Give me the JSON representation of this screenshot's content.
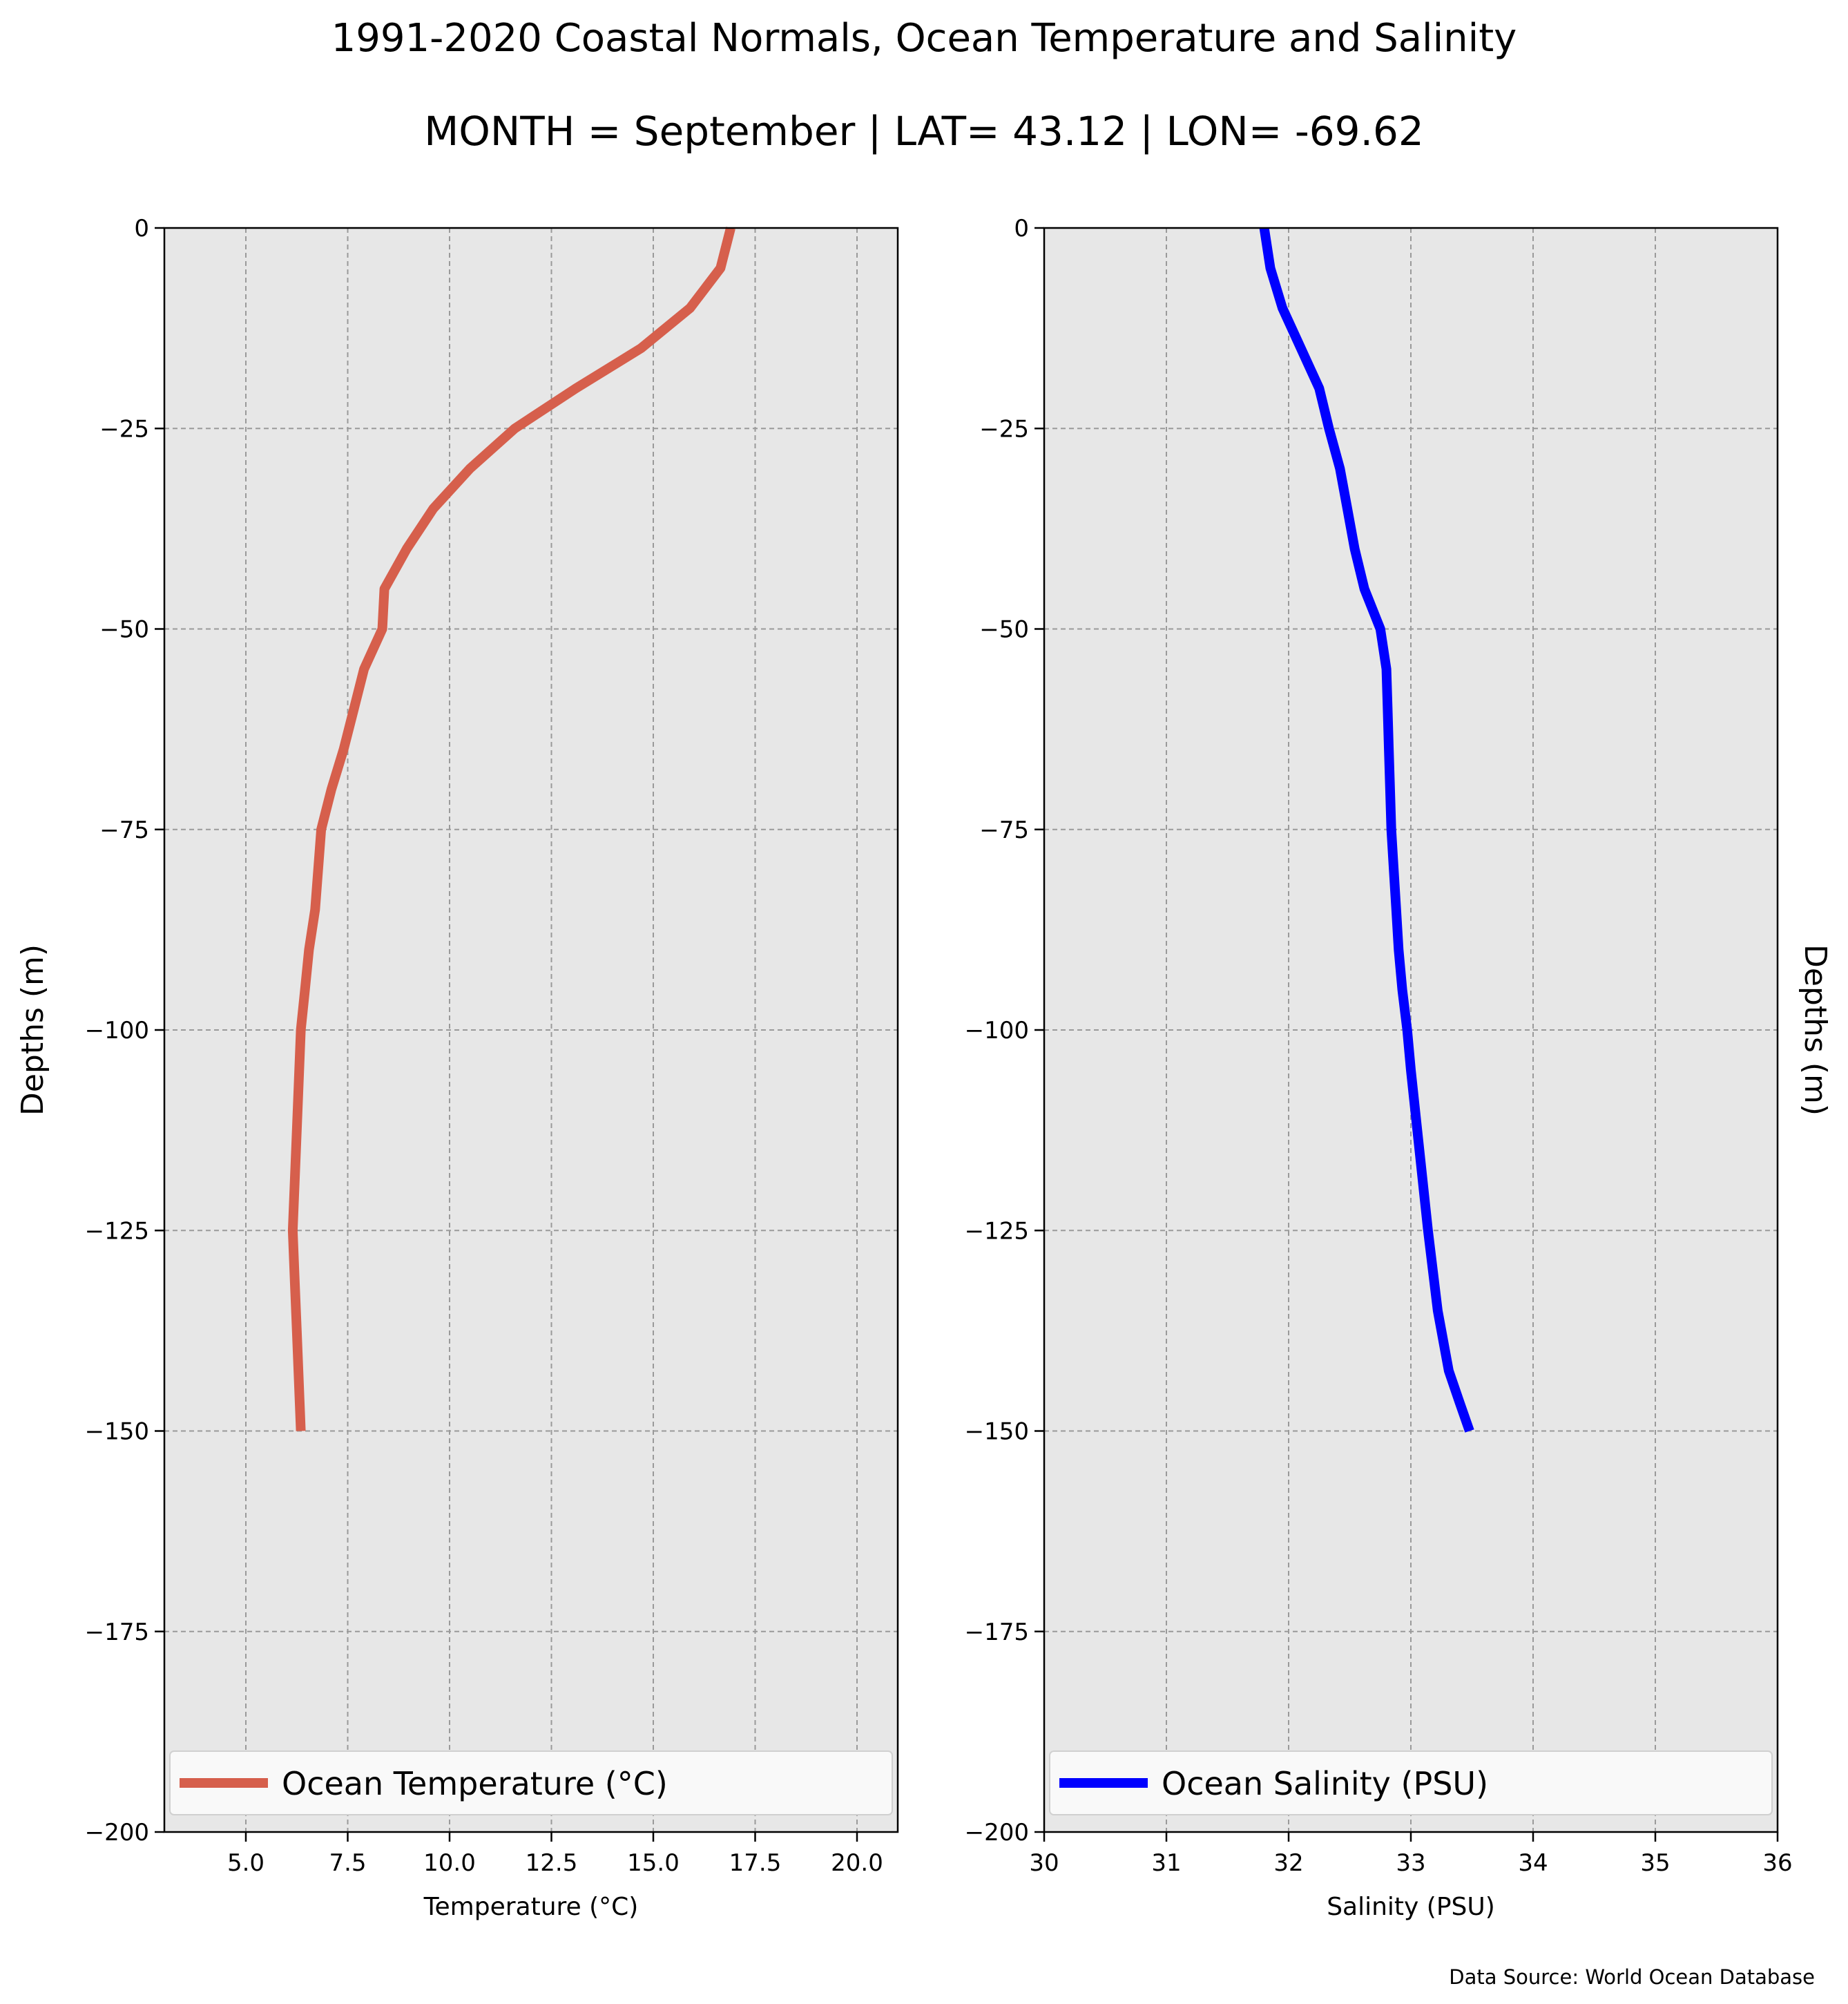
{
  "figure": {
    "title": "1991-2020 Coastal Normals, Ocean Temperature and Salinity",
    "subtitle": "MONTH = September | LAT= 43.12 | LON= -69.62",
    "source": "Data Source: World Ocean Database"
  },
  "chart_data": [
    {
      "type": "line",
      "xlabel": "Temperature (°C)",
      "ylabel": "Depths (m)",
      "xlim": [
        3.0,
        21.0
      ],
      "ylim": [
        -200,
        0
      ],
      "xticks": [
        5.0,
        7.5,
        10.0,
        12.5,
        15.0,
        17.5,
        20.0
      ],
      "xtick_labels": [
        "5.0",
        "7.5",
        "10.0",
        "12.5",
        "15.0",
        "17.5",
        "20.0"
      ],
      "xtick_labels_minus": [],
      "yticks": [
        0,
        -25,
        -50,
        -75,
        -100,
        -125,
        -150,
        -175,
        -200
      ],
      "ytick_labels": [
        "0",
        "−25",
        "−50",
        "−75",
        "−100",
        "−125",
        "−150",
        "−175",
        "−200"
      ],
      "ylabel_side": "left",
      "grid": true,
      "legend": "bottom",
      "series": [
        {
          "name": "Ocean Temperature (°C)",
          "color": "#d65f4c",
          "x": [
            16.9,
            16.65,
            15.9,
            14.7,
            13.1,
            11.6,
            10.5,
            9.6,
            8.95,
            8.4,
            8.35,
            7.9,
            7.65,
            7.4,
            7.1,
            6.85,
            6.7,
            6.55,
            6.45,
            6.35,
            6.25,
            6.15,
            6.2,
            6.25,
            6.3,
            6.35
          ],
          "y": [
            0,
            -5,
            -10,
            -15,
            -20,
            -25,
            -30,
            -35,
            -40,
            -45,
            -50,
            -55,
            -60,
            -65,
            -70,
            -75,
            -85,
            -90,
            -95,
            -100,
            -112.5,
            -125,
            -131.25,
            -137.5,
            -143.75,
            -150
          ]
        }
      ]
    },
    {
      "type": "line",
      "xlabel": "Salinity (PSU)",
      "ylabel": "Depths (m)",
      "xlim": [
        30,
        36
      ],
      "ylim": [
        -200,
        0
      ],
      "xticks": [
        30,
        31,
        32,
        33,
        34,
        35,
        36
      ],
      "xtick_labels": [
        "30",
        "31",
        "32",
        "33",
        "34",
        "35",
        "36"
      ],
      "yticks": [
        0,
        -25,
        -50,
        -75,
        -100,
        -125,
        -150,
        -175,
        -200
      ],
      "ytick_labels": [
        "0",
        "−25",
        "−50",
        "−75",
        "−100",
        "−125",
        "−150",
        "−175",
        "−200"
      ],
      "ylabel_side": "right",
      "grid": true,
      "legend": "bottom",
      "series": [
        {
          "name": "Ocean Salinity (PSU)",
          "color": "#0000ff",
          "x": [
            31.8,
            31.85,
            31.95,
            32.1,
            32.25,
            32.33,
            32.42,
            32.48,
            32.54,
            32.62,
            32.75,
            32.8,
            32.81,
            32.82,
            32.83,
            32.84,
            32.86,
            32.88,
            32.9,
            32.93,
            32.97,
            33.0,
            33.07,
            33.14,
            33.22,
            33.31,
            33.4,
            33.48
          ],
          "y": [
            0,
            -5,
            -10,
            -15,
            -20,
            -25,
            -30,
            -35,
            -40,
            -45,
            -50,
            -55,
            -60,
            -65,
            -70,
            -75,
            -80,
            -85,
            -90,
            -95,
            -100,
            -105,
            -115,
            -125,
            -135,
            -142.5,
            -146.5,
            -150
          ]
        }
      ]
    }
  ]
}
